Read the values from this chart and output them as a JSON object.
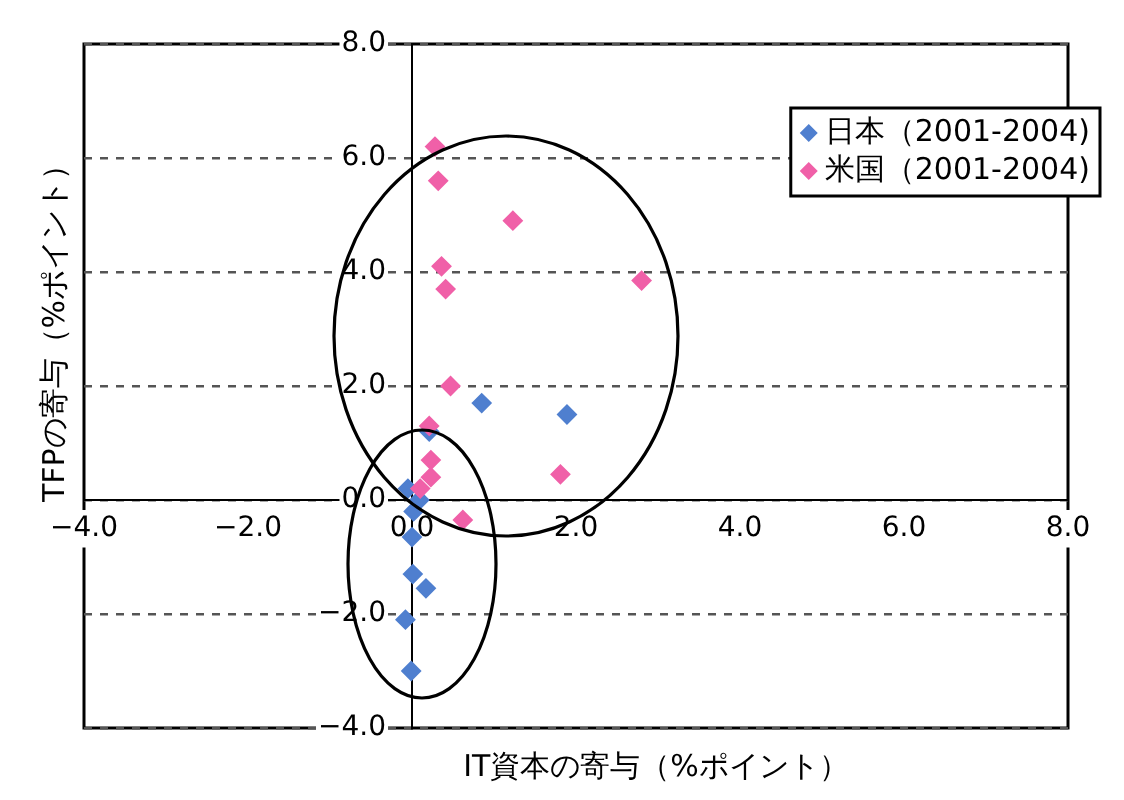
{
  "chart_data": {
    "type": "scatter",
    "xlabel": "IT資本の寄与（%ポイント）",
    "ylabel": "TFPの寄与（%ポイント）",
    "xlim": [
      -4,
      8
    ],
    "ylim": [
      -4,
      8
    ],
    "xticks": [
      {
        "value": -4,
        "label": "−4.0"
      },
      {
        "value": -2,
        "label": "−2.0"
      },
      {
        "value": 0,
        "label": "0.0"
      },
      {
        "value": 2,
        "label": "2.0"
      },
      {
        "value": 4,
        "label": "4.0"
      },
      {
        "value": 6,
        "label": "6.0"
      },
      {
        "value": 8,
        "label": "8.0"
      }
    ],
    "yticks": [
      {
        "value": -4,
        "label": "−4.0"
      },
      {
        "value": -2,
        "label": "−2.0"
      },
      {
        "value": 0,
        "label": "0.0"
      },
      {
        "value": 2,
        "label": "2.0"
      },
      {
        "value": 4,
        "label": "4.0"
      },
      {
        "value": 6,
        "label": "6.0"
      },
      {
        "value": 8,
        "label": "8.0"
      }
    ],
    "grid": "y",
    "legend": "top right",
    "marker": "diamond",
    "series": [
      {
        "name": "日本（2001-2004)",
        "color": "#4f7fcf",
        "x": [
          0.85,
          1.89,
          0.21,
          -0.05,
          0.09,
          0.02,
          0.0,
          0.01,
          0.17,
          -0.08,
          -0.01
        ],
        "values": [
          1.7,
          1.5,
          1.2,
          0.2,
          0.0,
          -0.2,
          -0.65,
          -1.3,
          -1.55,
          -2.1,
          -3.0
        ]
      },
      {
        "name": "米国（2001-2004)",
        "color": "#f060a8",
        "x": [
          0.28,
          0.32,
          1.23,
          0.36,
          0.41,
          2.8,
          0.47,
          0.21,
          0.23,
          0.23,
          0.1,
          1.81,
          0.62
        ],
        "values": [
          6.2,
          5.6,
          4.9,
          4.1,
          3.7,
          3.85,
          2.0,
          1.3,
          0.7,
          0.4,
          0.2,
          0.45,
          -0.35
        ]
      }
    ]
  }
}
